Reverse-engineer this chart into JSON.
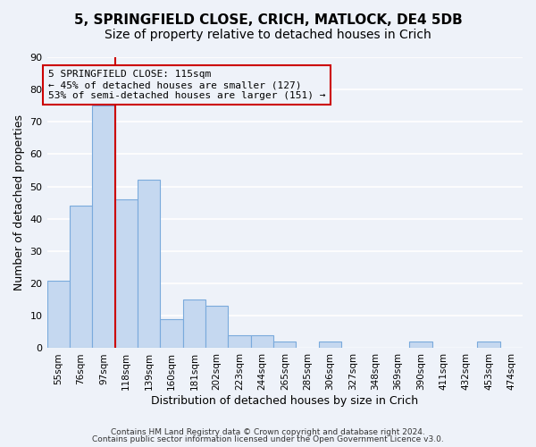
{
  "title1": "5, SPRINGFIELD CLOSE, CRICH, MATLOCK, DE4 5DB",
  "title2": "Size of property relative to detached houses in Crich",
  "xlabel": "Distribution of detached houses by size in Crich",
  "ylabel": "Number of detached properties",
  "bin_labels": [
    "55sqm",
    "76sqm",
    "97sqm",
    "118sqm",
    "139sqm",
    "160sqm",
    "181sqm",
    "202sqm",
    "223sqm",
    "244sqm",
    "265sqm",
    "285sqm",
    "306sqm",
    "327sqm",
    "348sqm",
    "369sqm",
    "390sqm",
    "411sqm",
    "432sqm",
    "453sqm",
    "474sqm"
  ],
  "bar_heights": [
    21,
    44,
    75,
    46,
    52,
    9,
    15,
    13,
    4,
    4,
    2,
    0,
    2,
    0,
    0,
    0,
    2,
    0,
    0,
    2,
    0
  ],
  "bar_color": "#c5d8f0",
  "bar_edgecolor": "#7aaadc",
  "vline_x": 2.5,
  "vline_color": "#cc0000",
  "ylim": [
    0,
    90
  ],
  "yticks": [
    0,
    10,
    20,
    30,
    40,
    50,
    60,
    70,
    80,
    90
  ],
  "annotation_text": "5 SPRINGFIELD CLOSE: 115sqm\n← 45% of detached houses are smaller (127)\n53% of semi-detached houses are larger (151) →",
  "annotation_box_edgecolor": "#cc0000",
  "footer1": "Contains HM Land Registry data © Crown copyright and database right 2024.",
  "footer2": "Contains public sector information licensed under the Open Government Licence v3.0.",
  "bg_color": "#eef2f9",
  "grid_color": "#ffffff",
  "title_fontsize": 11,
  "subtitle_fontsize": 10
}
